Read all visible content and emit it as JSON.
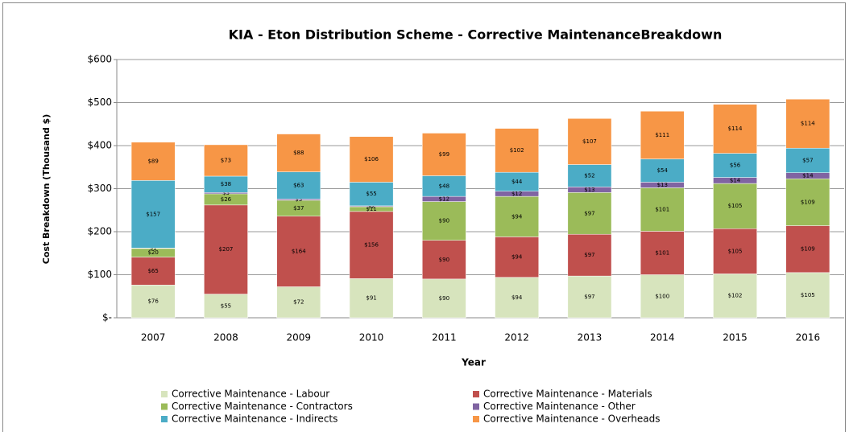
{
  "chart_data": {
    "type": "stacked_bar",
    "title": "KIA - Eton Distribution Scheme - Corrective MaintenanceBreakdown",
    "x_label": "Year",
    "y_label": "Cost Breakdown  (Thousand $)",
    "categories": [
      "2007",
      "2008",
      "2009",
      "2010",
      "2011",
      "2012",
      "2013",
      "2014",
      "2015",
      "2016"
    ],
    "series": [
      {
        "name": "Corrective Maintenance - Labour",
        "color": "#d7e4bd",
        "values": [
          76,
          55,
          72,
          91,
          90,
          94,
          97,
          100,
          102,
          105
        ],
        "value_labels": [
          "$76",
          "$55",
          "$72",
          "$91",
          "$90",
          "$94",
          "$97",
          "$100",
          "$102",
          "$105"
        ]
      },
      {
        "name": "Corrective Maintenance - Materials",
        "color": "#c0504d",
        "values": [
          65,
          207,
          164,
          156,
          90,
          94,
          97,
          101,
          105,
          109
        ],
        "value_labels": [
          "$65",
          "$207",
          "$164",
          "$156",
          "$90",
          "$94",
          "$97",
          "$101",
          "$105",
          "$109"
        ]
      },
      {
        "name": "Corrective Maintenance - Contractors",
        "color": "#9bbb59",
        "values": [
          20,
          26,
          37,
          11,
          90,
          94,
          97,
          101,
          105,
          109
        ],
        "value_labels": [
          "$20",
          "$26",
          "$37",
          "$11",
          "$90",
          "$94",
          "$97",
          "$101",
          "$105",
          "$109"
        ]
      },
      {
        "name": "Corrective Maintenance - Other",
        "color": "#8064a2",
        "values": [
          1,
          3,
          3,
          2,
          12,
          12,
          13,
          13,
          14,
          14
        ],
        "value_labels": [
          "$1",
          "$3",
          "$3",
          "$2",
          "$12",
          "$12",
          "$13",
          "$13",
          "$14",
          "$14"
        ]
      },
      {
        "name": "Corrective Maintenance - Indirects",
        "color": "#4bacc6",
        "values": [
          157,
          38,
          63,
          55,
          48,
          44,
          52,
          54,
          56,
          57
        ],
        "value_labels": [
          "$157",
          "$38",
          "$63",
          "$55",
          "$48",
          "$44",
          "$52",
          "$54",
          "$56",
          "$57"
        ]
      },
      {
        "name": "Corrective Maintenance - Overheads",
        "color": "#f79646",
        "values": [
          89,
          73,
          88,
          106,
          99,
          102,
          107,
          111,
          114,
          114
        ],
        "value_labels": [
          "$89",
          "$73",
          "$88",
          "$106",
          "$99",
          "$102",
          "$107",
          "$111",
          "$114",
          "$114"
        ]
      }
    ],
    "ylim": [
      0,
      600
    ],
    "yticks": [
      {
        "value": 0,
        "label": "$-"
      },
      {
        "value": 100,
        "label": "$100"
      },
      {
        "value": 200,
        "label": "$200"
      },
      {
        "value": 300,
        "label": "$300"
      },
      {
        "value": 400,
        "label": "$400"
      },
      {
        "value": 500,
        "label": "$500"
      },
      {
        "value": 600,
        "label": "$600"
      }
    ],
    "grid": true
  }
}
